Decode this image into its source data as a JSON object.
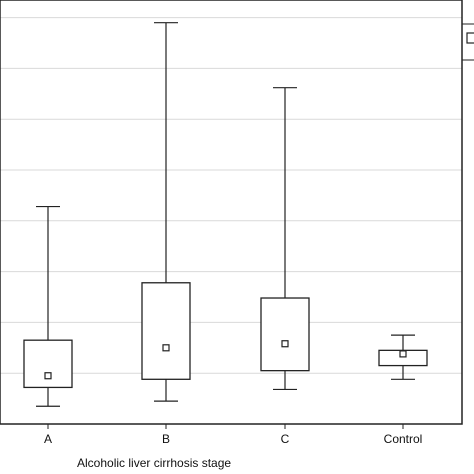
{
  "chart_data": {
    "type": "boxplot",
    "xlabel": "Alcoholic liver cirrhosis stage",
    "ylabel": "",
    "categories": [
      "A",
      "B",
      "C",
      "Control"
    ],
    "y_range": [
      0,
      10
    ],
    "gridlines": [
      1,
      2,
      3,
      4,
      5,
      6,
      7,
      8
    ],
    "grid": true,
    "legend": "top-right (partially visible)",
    "boxes": [
      {
        "category": "A",
        "whisker_low": 0.35,
        "q1": 0.72,
        "median_marker": 0.95,
        "q3": 1.65,
        "whisker_high": 4.28
      },
      {
        "category": "B",
        "whisker_low": 0.45,
        "q1": 0.88,
        "median_marker": 1.5,
        "q3": 2.78,
        "whisker_high": 7.9
      },
      {
        "category": "C",
        "whisker_low": 0.68,
        "q1": 1.05,
        "median_marker": 1.58,
        "q3": 2.48,
        "whisker_high": 6.62
      },
      {
        "category": "Control",
        "whisker_low": 0.88,
        "q1": 1.15,
        "median_marker": 1.38,
        "q3": 1.45,
        "whisker_high": 1.75
      }
    ]
  }
}
